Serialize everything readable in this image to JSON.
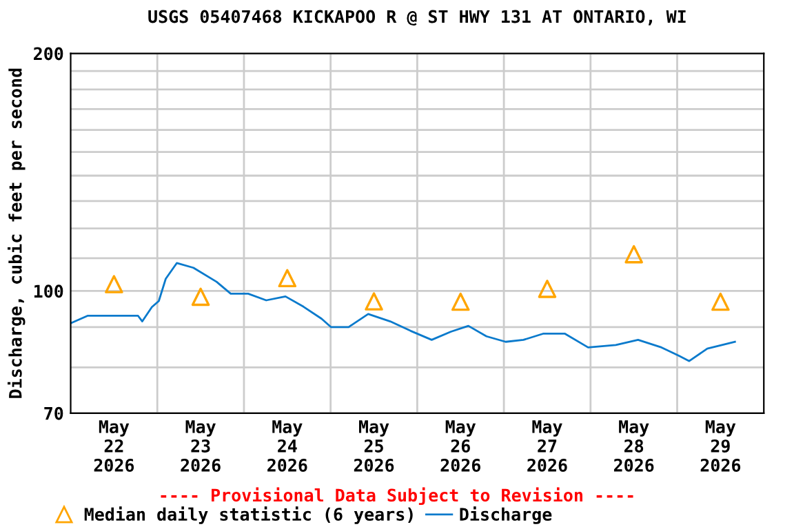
{
  "chart_data": {
    "type": "line",
    "title": "USGS 05407468 KICKAPOO R @ ST HWY 131 AT ONTARIO, WI",
    "ylabel": "Discharge, cubic feet per second",
    "annotations": [
      "---- Provisional Data Subject to Revision ----"
    ],
    "log": "y",
    "grid": true,
    "legend": "bottom",
    "xlim": [
      "2026-05-22T00:00",
      "2026-05-30T00:00"
    ],
    "xticks": [
      {
        "value": "2026-05-22T12:00",
        "label": "May\n22\n2026"
      },
      {
        "value": "2026-05-23T12:00",
        "label": "May\n23\n2026"
      },
      {
        "value": "2026-05-24T12:00",
        "label": "May\n24\n2026"
      },
      {
        "value": "2026-05-25T12:00",
        "label": "May\n25\n2026"
      },
      {
        "value": "2026-05-26T12:00",
        "label": "May\n26\n2026"
      },
      {
        "value": "2026-05-27T12:00",
        "label": "May\n27\n2026"
      },
      {
        "value": "2026-05-28T12:00",
        "label": "May\n28\n2026"
      },
      {
        "value": "2026-05-29T12:00",
        "label": "May\n29\n2026"
      },
      {
        "value": "2026-05-23T00:00",
        "label": null
      },
      {
        "value": "2026-05-24T00:00",
        "label": null
      },
      {
        "value": "2026-05-25T00:00",
        "label": null
      },
      {
        "value": "2026-05-26T00:00",
        "label": null
      },
      {
        "value": "2026-05-27T00:00",
        "label": null
      },
      {
        "value": "2026-05-28T00:00",
        "label": null
      },
      {
        "value": "2026-05-29T00:00",
        "label": null
      }
    ],
    "ylim": [
      70,
      200
    ],
    "yticks": [
      70,
      {
        "value": 80,
        "label": null
      },
      {
        "value": 90,
        "label": null
      },
      100,
      {
        "value": 110,
        "label": null
      },
      {
        "value": 120,
        "label": null
      },
      {
        "value": 130,
        "label": null
      },
      {
        "value": 140,
        "label": null
      },
      {
        "value": 150,
        "label": null
      },
      {
        "value": 160,
        "label": null
      },
      {
        "value": 170,
        "label": null
      },
      {
        "value": 180,
        "label": null
      },
      {
        "value": 190,
        "label": null
      },
      200
    ],
    "series": [
      {
        "name": "Median daily statistic (6 years)",
        "type": "scatter",
        "marker": "triangle",
        "color": "#ffa500",
        "x": [
          "2026-05-22T12:00",
          "2026-05-23T12:00",
          "2026-05-24T12:00",
          "2026-05-25T12:00",
          "2026-05-26T12:00",
          "2026-05-27T12:00",
          "2026-05-28T12:00",
          "2026-05-29T12:00"
        ],
        "values": [
          102,
          98.3,
          103.8,
          97,
          96.9,
          100.6,
          111.3,
          96.9
        ]
      },
      {
        "name": "Discharge",
        "color": "#0a7acc",
        "x": [
          "2026-05-22T00:00",
          "2026-05-22T04:40",
          "2026-05-22T18:40",
          "2026-05-22T19:50",
          "2026-05-22T22:30",
          "2026-05-23T00:25",
          "2026-05-23T02:20",
          "2026-05-23T05:25",
          "2026-05-23T10:00",
          "2026-05-23T16:25",
          "2026-05-23T20:20",
          "2026-05-24T01:10",
          "2026-05-24T06:10",
          "2026-05-24T11:30",
          "2026-05-24T16:30",
          "2026-05-24T21:30",
          "2026-05-25T00:05",
          "2026-05-25T05:00",
          "2026-05-25T10:25",
          "2026-05-25T16:30",
          "2026-05-25T22:10",
          "2026-05-26T04:00",
          "2026-05-26T09:20",
          "2026-05-26T14:10",
          "2026-05-26T19:10",
          "2026-05-27T00:30",
          "2026-05-27T05:25",
          "2026-05-27T11:00",
          "2026-05-27T16:50",
          "2026-05-27T23:20",
          "2026-05-28T07:00",
          "2026-05-28T13:10",
          "2026-05-28T19:40",
          "2026-05-29T00:35",
          "2026-05-29T03:20",
          "2026-05-29T08:20",
          "2026-05-29T16:00"
        ],
        "values": [
          91,
          93,
          93,
          91.5,
          95.4,
          97.1,
          103.6,
          108.5,
          107,
          102.7,
          99.2,
          99.2,
          97.3,
          98.4,
          95.5,
          92.2,
          90,
          90,
          93.5,
          91.5,
          89,
          86.7,
          88.8,
          90.3,
          87.6,
          86.2,
          86.7,
          88.3,
          88.3,
          84.8,
          85.4,
          86.7,
          84.8,
          82.7,
          81.5,
          84.5,
          86.2
        ]
      }
    ]
  }
}
